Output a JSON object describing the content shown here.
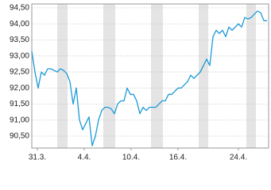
{
  "chart_data": {
    "type": "line",
    "series": [
      {
        "color": "#1b9ad6",
        "values": [
          93.15,
          92.5,
          92.0,
          92.5,
          92.4,
          92.6,
          92.6,
          92.55,
          92.5,
          92.6,
          92.55,
          92.45,
          92.2,
          91.5,
          92.0,
          91.0,
          90.7,
          90.9,
          91.1,
          90.2,
          90.5,
          91.0,
          91.3,
          91.4,
          91.4,
          91.35,
          91.2,
          91.5,
          91.6,
          91.6,
          92.0,
          91.8,
          91.8,
          91.6,
          91.2,
          91.4,
          91.3,
          91.4,
          91.4,
          91.4,
          91.5,
          91.6,
          91.6,
          91.8,
          91.8,
          91.9,
          92.0,
          92.0,
          92.1,
          92.2,
          92.4,
          92.3,
          92.4,
          92.5,
          92.7,
          92.9,
          92.7,
          93.6,
          93.8,
          93.7,
          93.8,
          93.6,
          93.9,
          93.8,
          93.9,
          94.0,
          93.9,
          94.2,
          94.15,
          94.2,
          94.3,
          94.4,
          94.35,
          94.1,
          94.1
        ]
      }
    ],
    "xlim": [
      0,
      74.5
    ],
    "xticks": [
      {
        "value": 1.75,
        "label": "31.3."
      },
      {
        "value": 16.5,
        "label": "4.4."
      },
      {
        "value": 31.25,
        "label": "10.4."
      },
      {
        "value": 46,
        "label": "16.4."
      },
      {
        "value": 65,
        "label": "24.4."
      }
    ],
    "shaded_ranges": [
      [
        8,
        11.25
      ],
      [
        22.5,
        26.25
      ],
      [
        37.5,
        41.25
      ],
      [
        52.5,
        55.5
      ],
      [
        67.5,
        70.5
      ]
    ],
    "shade_color": "#e4e4e4",
    "ylim": [
      90.13,
      94.62
    ],
    "yticks": [
      {
        "value": 90.5,
        "label": "90,50"
      },
      {
        "value": 91,
        "label": "91,00"
      },
      {
        "value": 91.5,
        "label": "91,50"
      },
      {
        "value": 92,
        "label": "92,00"
      },
      {
        "value": 92.5,
        "label": "92,50"
      },
      {
        "value": 93,
        "label": "93,00"
      },
      {
        "value": 93.5,
        "label": "93,50"
      },
      {
        "value": 94,
        "label": "94,00"
      },
      {
        "value": 94.5,
        "label": "94,50"
      }
    ],
    "grid": true
  }
}
